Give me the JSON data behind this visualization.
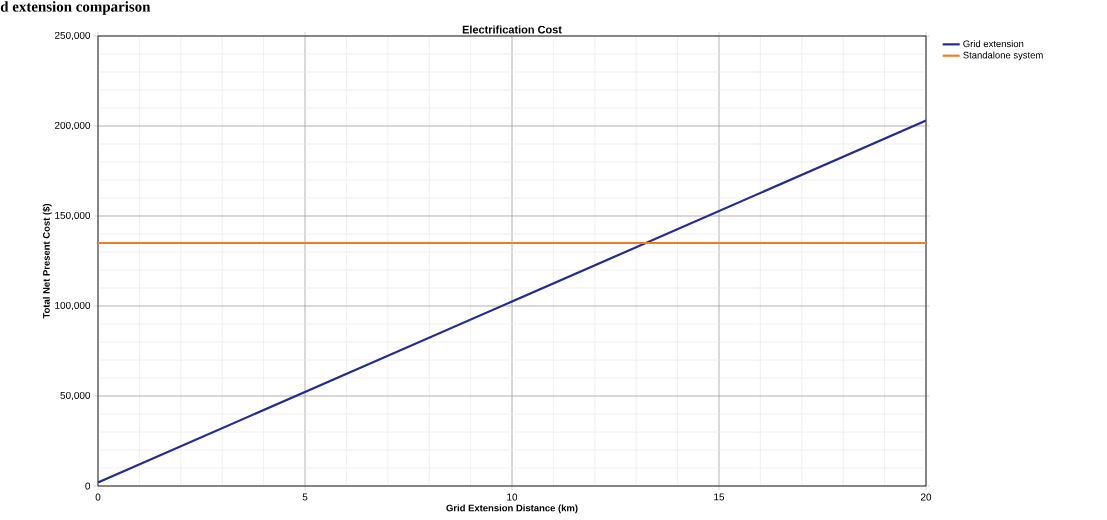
{
  "chart_data": {
    "type": "line",
    "title": "Electrification Cost",
    "xlabel": "Grid Extension Distance (km)",
    "ylabel": "Total Net Present Cost ($)",
    "annotations": [
      "d extension comparison"
    ],
    "x": [
      0,
      20
    ],
    "series": [
      {
        "name": "Grid extension",
        "color": "#262b8f",
        "values": [
          2000,
          203000
        ]
      },
      {
        "name": "Standalone system",
        "color": "#f47b20",
        "values": [
          135000,
          135000
        ]
      }
    ],
    "xlim": [
      0,
      20
    ],
    "ylim": [
      0,
      250000
    ],
    "xticks": [
      0,
      5,
      10,
      15,
      20
    ],
    "yticks": [
      0,
      {
        "value": 50000,
        "label": "50,000"
      },
      {
        "value": 100000,
        "label": "100,000"
      },
      {
        "value": 150000,
        "label": "150,000"
      },
      {
        "value": 200000,
        "label": "200,000"
      },
      {
        "value": 250000,
        "label": "250,000"
      }
    ],
    "grid": true,
    "legend": "top right",
    "marker": "none",
    "line_style": "solid"
  }
}
